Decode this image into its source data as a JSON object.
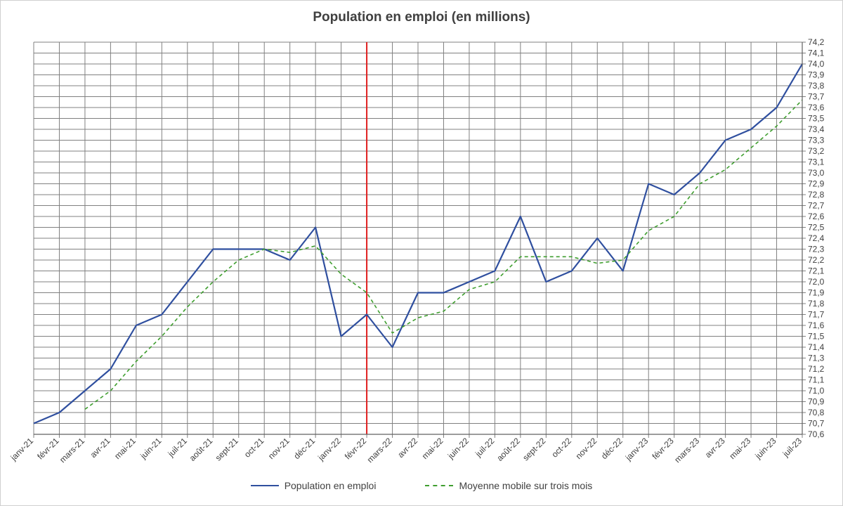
{
  "colors": {
    "series_main": "#2F4F9F",
    "series_avg": "#3F9E2F",
    "marker_line": "#E02020",
    "grid": "#808080",
    "text": "#404040"
  },
  "chart_data": {
    "type": "line",
    "title": "Population en emploi (en millions)",
    "xlabel": "",
    "ylabel": "",
    "ylim": [
      70.6,
      74.2
    ],
    "y_ticks": [
      "70,6",
      "70,7",
      "70,8",
      "70,9",
      "71,0",
      "71,1",
      "71,2",
      "71,3",
      "71,4",
      "71,5",
      "71,6",
      "71,7",
      "71,8",
      "71,9",
      "72,0",
      "72,1",
      "72,2",
      "72,3",
      "72,4",
      "72,5",
      "72,6",
      "72,7",
      "72,8",
      "72,9",
      "73,0",
      "73,1",
      "73,2",
      "73,3",
      "73,4",
      "73,5",
      "73,6",
      "73,7",
      "73,8",
      "73,9",
      "74,0",
      "74,1",
      "74,2"
    ],
    "y_axis_position": "right",
    "grid": true,
    "legend_position": "bottom",
    "vertical_marker": "févr-22",
    "categories": [
      "janv-21",
      "févr-21",
      "mars-21",
      "avr-21",
      "mai-21",
      "juin-21",
      "juil-21",
      "août-21",
      "sept-21",
      "oct-21",
      "nov-21",
      "déc-21",
      "janv-22",
      "févr-22",
      "mars-22",
      "avr-22",
      "mai-22",
      "juin-22",
      "juil-22",
      "août-22",
      "sept-22",
      "oct-22",
      "nov-22",
      "déc-22",
      "janv-23",
      "févr-23",
      "mars-23",
      "avr-23",
      "mai-23",
      "juin-23",
      "juil-23"
    ],
    "series": [
      {
        "name": "Population en emploi",
        "style": "solid",
        "values": [
          70.7,
          70.8,
          71.0,
          71.2,
          71.6,
          71.7,
          72.0,
          72.3,
          72.3,
          72.3,
          72.2,
          72.5,
          71.5,
          71.7,
          71.4,
          71.9,
          71.9,
          72.0,
          72.1,
          72.6,
          72.0,
          72.1,
          72.4,
          72.1,
          72.9,
          72.8,
          73.0,
          73.3,
          73.4,
          73.6,
          74.0
        ]
      },
      {
        "name": "Moyenne mobile sur trois mois",
        "style": "dashed",
        "values": [
          null,
          null,
          70.83,
          71.0,
          71.27,
          71.5,
          71.77,
          72.0,
          72.2,
          72.3,
          72.27,
          72.33,
          72.07,
          71.9,
          71.53,
          71.67,
          71.73,
          71.93,
          72.0,
          72.23,
          72.23,
          72.23,
          72.17,
          72.2,
          72.47,
          72.6,
          72.9,
          73.03,
          73.23,
          73.43,
          73.67
        ]
      }
    ]
  }
}
